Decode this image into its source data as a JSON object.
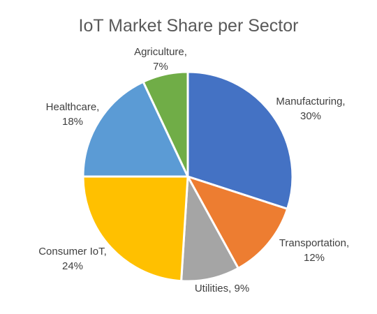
{
  "chart_data": {
    "type": "pie",
    "title": "IoT Market Share per Sector",
    "slices": [
      {
        "label": "Manufacturing",
        "value": 30,
        "value_label": "30%",
        "color": "#4472C4"
      },
      {
        "label": "Transportation",
        "value": 12,
        "value_label": "12%",
        "color": "#ED7D31"
      },
      {
        "label": "Utilities",
        "value": 9,
        "value_label": "9%",
        "color": "#A5A5A5"
      },
      {
        "label": "Consumer IoT",
        "value": 24,
        "value_label": "24%",
        "color": "#FFC000"
      },
      {
        "label": "Healthcare",
        "value": 18,
        "value_label": "18%",
        "color": "#5B9BD5"
      },
      {
        "label": "Agriculture",
        "value": 7,
        "value_label": "7%",
        "color": "#70AD47"
      }
    ],
    "start_angle_deg": 0,
    "direction": "clockwise",
    "legend": "none",
    "data_labels": "category name and percentage, outside end"
  }
}
